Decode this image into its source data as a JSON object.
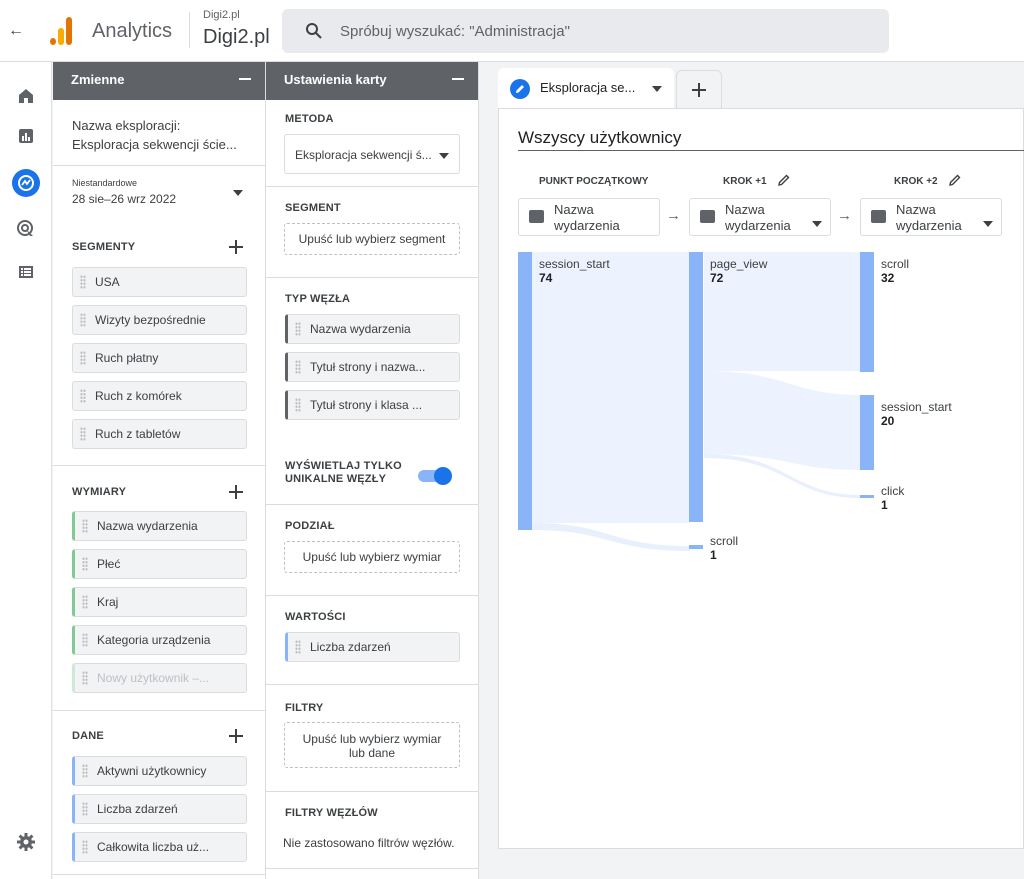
{
  "topbar": {
    "app_title": "Analytics",
    "account_small": "Digi2.pl",
    "account_big": "Digi2.pl",
    "search_placeholder": "Spróbuj wyszukać: \"Administracja\""
  },
  "variables": {
    "header": "Zmienne",
    "exploration_name_label": "Nazwa eksploracji:",
    "exploration_name_value": "Eksploracja sekwencji ście...",
    "date_label": "Niestandardowe",
    "date_value": "28 sie–26 wrz 2022",
    "segments_label": "SEGMENTY",
    "segments": [
      "USA",
      "Wizyty bezpośrednie",
      "Ruch płatny",
      "Ruch z komórek",
      "Ruch z tabletów"
    ],
    "dimensions_label": "WYMIARY",
    "dimensions": [
      "Nazwa wydarzenia",
      "Płeć",
      "Kraj",
      "Kategoria urządzenia",
      "Nowy użytkownik –..."
    ],
    "metrics_label": "DANE",
    "metrics": [
      "Aktywni użytkownicy",
      "Liczba zdarzeń",
      "Całkowita liczba uż..."
    ]
  },
  "settings": {
    "header": "Ustawienia karty",
    "method_label": "METODA",
    "method_value": "Eksploracja sekwencji ś...",
    "segment_label": "SEGMENT",
    "segment_drop": "Upuść lub wybierz segment",
    "node_type_label": "TYP WĘZŁA",
    "node_types": [
      "Nazwa wydarzenia",
      "Tytuł strony i nazwa...",
      "Tytuł strony i klasa ..."
    ],
    "unique_label_1": "WYŚWIETLAJ TYLKO",
    "unique_label_2": "UNIKALNE WĘZŁY",
    "unique_on": true,
    "breakdown_label": "PODZIAŁ",
    "breakdown_drop": "Upuść lub wybierz wymiar",
    "values_label": "WARTOŚCI",
    "values_chip": "Liczba zdarzeń",
    "filters_label": "FILTRY",
    "filters_drop_1": "Upuść lub wybierz wymiar",
    "filters_drop_2": "lub dane",
    "node_filters_label": "FILTRY WĘZŁÓW",
    "node_filters_text": "Nie zastosowano filtrów węzłów."
  },
  "canvas": {
    "tab_label": "Eksploracja se...",
    "segment_title": "Wszyscy użytkownicy",
    "steps": [
      {
        "head": "PUNKT POCZĄTKOWY",
        "node_line1": "Nazwa",
        "node_line2": "wydarzenia",
        "editable": false,
        "dropdown": false
      },
      {
        "head": "KROK +1",
        "node_line1": "Nazwa",
        "node_line2": "wydarzenia",
        "editable": true,
        "dropdown": true
      },
      {
        "head": "KROK +2",
        "node_line1": "Nazwa",
        "node_line2": "wydarzenia",
        "editable": true,
        "dropdown": true
      }
    ],
    "nodes": {
      "s0": [
        {
          "name": "session_start",
          "value": "74"
        }
      ],
      "s1": [
        {
          "name": "page_view",
          "value": "72"
        },
        {
          "name": "scroll",
          "value": "1"
        }
      ],
      "s2": [
        {
          "name": "scroll",
          "value": "32"
        },
        {
          "name": "session_start",
          "value": "20"
        },
        {
          "name": "click",
          "value": "1"
        }
      ]
    }
  },
  "colors": {
    "accent": "#1a73e8",
    "node": "#8ab4f8",
    "flow": "#e8f0fe",
    "header": "#5f6368",
    "logo_orange": "#f9ab00",
    "logo_dark": "#e37400"
  },
  "icons": [
    "back-arrow-icon",
    "analytics-logo-icon",
    "search-icon",
    "home-icon",
    "reports-icon",
    "explore-icon",
    "advertising-icon",
    "configure-icon",
    "settings-gear-icon",
    "pencil-icon",
    "plus-icon",
    "chevron-down-icon",
    "arrow-right-icon"
  ]
}
